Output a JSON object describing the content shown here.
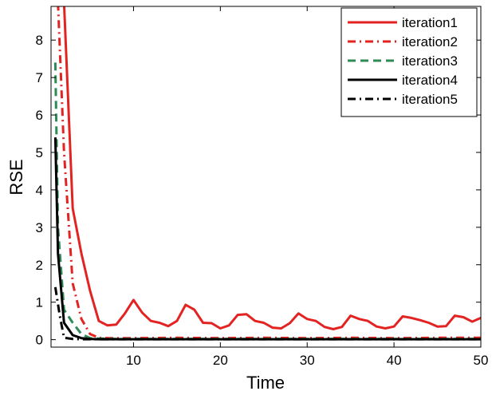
{
  "chart_data": {
    "type": "line",
    "xlabel": "Time",
    "ylabel": "RSE",
    "xlim": [
      0.5,
      50
    ],
    "ylim": [
      -0.2,
      8.9
    ],
    "xticks": [
      10,
      20,
      30,
      40,
      50
    ],
    "yticks": [
      0,
      1,
      2,
      3,
      4,
      5,
      6,
      7,
      8
    ],
    "grid": false,
    "legend_position": "top-right",
    "series": [
      {
        "name": "iteration1",
        "color": "#e32322",
        "style": "solid",
        "x": [
          2,
          3,
          4,
          5,
          6,
          7,
          8,
          9,
          10,
          11,
          12,
          13,
          14,
          15,
          16,
          17,
          18,
          19,
          20,
          21,
          22,
          23,
          24,
          25,
          26,
          27,
          28,
          29,
          30,
          31,
          32,
          33,
          34,
          35,
          36,
          37,
          38,
          39,
          40,
          41,
          42,
          43,
          44,
          45,
          46,
          47,
          48,
          49,
          50
        ],
        "y": [
          9.0,
          3.5,
          2.3,
          1.3,
          0.5,
          0.38,
          0.4,
          0.7,
          1.06,
          0.72,
          0.5,
          0.45,
          0.36,
          0.5,
          0.93,
          0.8,
          0.45,
          0.44,
          0.3,
          0.38,
          0.66,
          0.68,
          0.5,
          0.45,
          0.32,
          0.3,
          0.44,
          0.7,
          0.55,
          0.5,
          0.34,
          0.28,
          0.34,
          0.64,
          0.55,
          0.5,
          0.35,
          0.3,
          0.35,
          0.62,
          0.58,
          0.52,
          0.45,
          0.35,
          0.36,
          0.64,
          0.6,
          0.48,
          0.58
        ]
      },
      {
        "name": "iteration2",
        "color": "#e32322",
        "style": "dashdot",
        "x": [
          1.3,
          2,
          3,
          4,
          5,
          6,
          7,
          8,
          10,
          15,
          20,
          25,
          30,
          35,
          40,
          45,
          50
        ],
        "y": [
          9.0,
          5.0,
          1.5,
          0.55,
          0.15,
          0.05,
          0.04,
          0.04,
          0.04,
          0.05,
          0.04,
          0.05,
          0.04,
          0.05,
          0.04,
          0.05,
          0.05
        ]
      },
      {
        "name": "iteration3",
        "color": "#2e8b57",
        "style": "dashed",
        "x": [
          1,
          1.3,
          2,
          3,
          4,
          5,
          6,
          8,
          10,
          15,
          20,
          25,
          30,
          35,
          40,
          45,
          50
        ],
        "y": [
          7.4,
          3.0,
          0.8,
          0.45,
          0.15,
          0.04,
          0.03,
          0.02,
          0.02,
          0.02,
          0.02,
          0.02,
          0.02,
          0.02,
          0.02,
          0.02,
          0.02
        ]
      },
      {
        "name": "iteration4",
        "color": "#000000",
        "style": "solid",
        "x": [
          1,
          1.3,
          2,
          3,
          4,
          5,
          6,
          8,
          10,
          15,
          20,
          25,
          30,
          35,
          40,
          45,
          50
        ],
        "y": [
          5.4,
          2.3,
          0.45,
          0.12,
          0.04,
          0.02,
          0.01,
          0.01,
          0.01,
          0.01,
          0.01,
          0.01,
          0.01,
          0.01,
          0.01,
          0.01,
          0.01
        ]
      },
      {
        "name": "iteration5",
        "color": "#000000",
        "style": "dashdot",
        "x": [
          1,
          1.5,
          2,
          3,
          4,
          5,
          6,
          8,
          10,
          15,
          20,
          25,
          30,
          35,
          40,
          45,
          50
        ],
        "y": [
          1.4,
          0.65,
          0.05,
          0.02,
          0.01,
          0.01,
          0.01,
          0.01,
          0.01,
          0.01,
          0.01,
          0.01,
          0.01,
          0.01,
          0.01,
          0.01,
          0.01
        ]
      }
    ]
  }
}
